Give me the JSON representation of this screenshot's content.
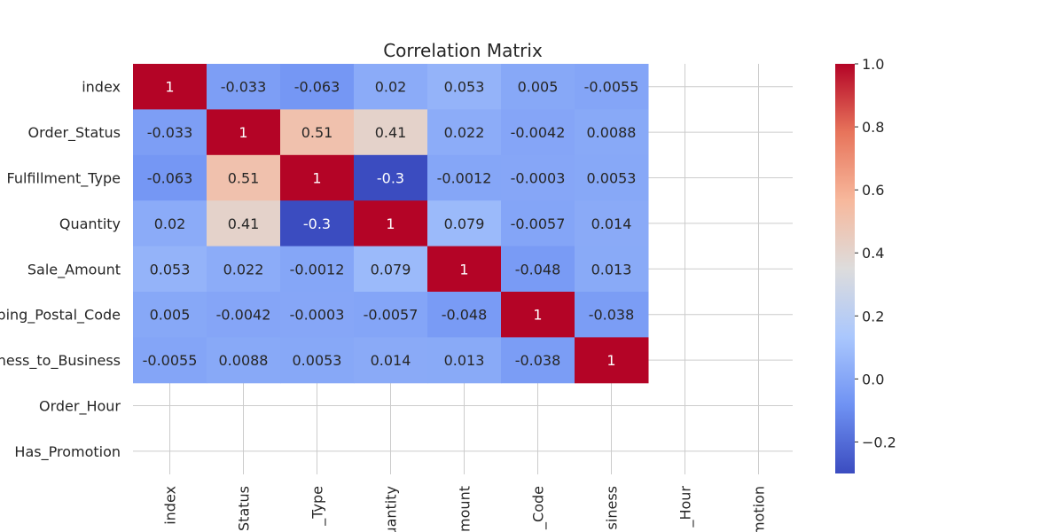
{
  "chart_data": {
    "type": "heatmap",
    "title": "Correlation Matrix",
    "row_labels": [
      "index",
      "Order_Status",
      "Fulfillment_Type",
      "Quantity",
      "Sale_Amount",
      "ping_Postal_Code",
      "ness_to_Business",
      "Order_Hour",
      "Has_Promotion"
    ],
    "column_labels": [
      "index",
      "Status",
      "_Type",
      "uantity",
      "mount",
      "_Code",
      "siness",
      "_Hour",
      "motion"
    ],
    "values": [
      [
        1,
        -0.033,
        -0.063,
        0.02,
        0.053,
        0.005,
        -0.0055,
        null,
        null
      ],
      [
        -0.033,
        1,
        0.51,
        0.41,
        0.022,
        -0.0042,
        0.0088,
        null,
        null
      ],
      [
        -0.063,
        0.51,
        1,
        -0.3,
        -0.0012,
        -0.0003,
        0.0053,
        null,
        null
      ],
      [
        0.02,
        0.41,
        -0.3,
        1,
        0.079,
        -0.0057,
        0.014,
        null,
        null
      ],
      [
        0.053,
        0.022,
        -0.0012,
        0.079,
        1,
        -0.048,
        0.013,
        null,
        null
      ],
      [
        0.005,
        -0.0042,
        -0.0003,
        -0.0057,
        -0.048,
        1,
        -0.038,
        null,
        null
      ],
      [
        -0.0055,
        0.0088,
        0.0053,
        0.014,
        0.013,
        -0.038,
        1,
        null,
        null
      ],
      [
        null,
        null,
        null,
        null,
        null,
        null,
        null,
        null,
        null
      ],
      [
        null,
        null,
        null,
        null,
        null,
        null,
        null,
        null,
        null
      ]
    ],
    "annotations": [
      [
        "1",
        "-0.033",
        "-0.063",
        "0.02",
        "0.053",
        "0.005",
        "-0.0055",
        "",
        ""
      ],
      [
        "-0.033",
        "1",
        "0.51",
        "0.41",
        "0.022",
        "-0.0042",
        "0.0088",
        "",
        ""
      ],
      [
        "-0.063",
        "0.51",
        "1",
        "-0.3",
        "-0.0012",
        "-0.0003",
        "0.0053",
        "",
        ""
      ],
      [
        "0.02",
        "0.41",
        "-0.3",
        "1",
        "0.079",
        "-0.0057",
        "0.014",
        "",
        ""
      ],
      [
        "0.053",
        "0.022",
        "-0.0012",
        "0.079",
        "1",
        "-0.048",
        "0.013",
        "",
        ""
      ],
      [
        "0.005",
        "-0.0042",
        "-0.0003",
        "-0.0057",
        "-0.048",
        "1",
        "-0.038",
        "",
        ""
      ],
      [
        "-0.0055",
        "0.0088",
        "0.0053",
        "0.014",
        "0.013",
        "-0.038",
        "1",
        "",
        ""
      ],
      [
        "",
        "",
        "",
        "",
        "",
        "",
        "",
        "",
        ""
      ],
      [
        "",
        "",
        "",
        "",
        "",
        "",
        "",
        "",
        ""
      ]
    ],
    "colormap": "coolwarm",
    "colormap_stops": [
      "#3b4cc0",
      "#6f92f3",
      "#aac7fd",
      "#dddcdc",
      "#f7b89c",
      "#e7745b",
      "#b40426"
    ],
    "vmin": -0.3,
    "vmax": 1.0,
    "colorbar_ticks": [
      -0.2,
      0.0,
      0.2,
      0.4,
      0.6,
      0.8,
      1.0
    ],
    "colorbar_tick_labels": [
      "−0.2",
      "0.0",
      "0.2",
      "0.4",
      "0.6",
      "0.8",
      "1.0"
    ],
    "grid": true,
    "colors": {
      "grid": "#cccccc",
      "text": "#262626",
      "annotation_light": "#ffffff",
      "annotation_dark": "#262626"
    }
  }
}
